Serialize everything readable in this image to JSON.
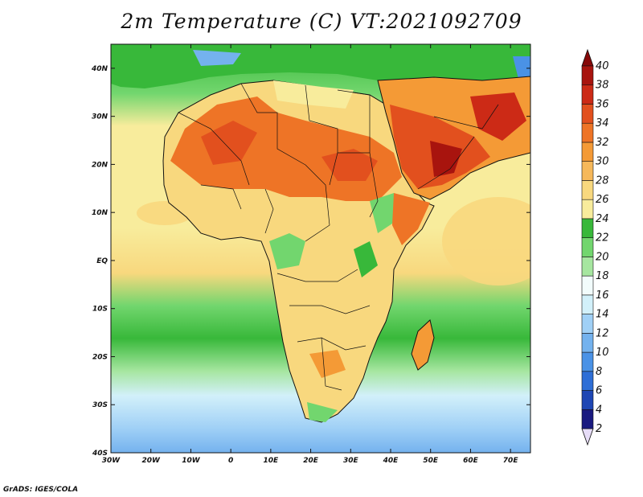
{
  "title": "2m Temperature (C) VT:2021092709",
  "credit": "GrADS: IGES/COLA",
  "map": {
    "lon_range": [
      -30,
      75
    ],
    "lat_range": [
      -40,
      45
    ],
    "lon_ticks": [
      {
        "value": -30,
        "label": "30W"
      },
      {
        "value": -20,
        "label": "20W"
      },
      {
        "value": -10,
        "label": "10W"
      },
      {
        "value": 0,
        "label": "0"
      },
      {
        "value": 10,
        "label": "10E"
      },
      {
        "value": 20,
        "label": "20E"
      },
      {
        "value": 30,
        "label": "30E"
      },
      {
        "value": 40,
        "label": "40E"
      },
      {
        "value": 50,
        "label": "50E"
      },
      {
        "value": 60,
        "label": "60E"
      },
      {
        "value": 70,
        "label": "70E"
      }
    ],
    "lat_ticks": [
      {
        "value": 40,
        "label": "40N"
      },
      {
        "value": 30,
        "label": "30N"
      },
      {
        "value": 20,
        "label": "20N"
      },
      {
        "value": 10,
        "label": "10N"
      },
      {
        "value": 0,
        "label": "EQ"
      },
      {
        "value": -10,
        "label": "10S"
      },
      {
        "value": -20,
        "label": "20S"
      },
      {
        "value": -30,
        "label": "30S"
      },
      {
        "value": -40,
        "label": "40S"
      }
    ]
  },
  "colorbar": {
    "levels": [
      2,
      4,
      6,
      8,
      10,
      12,
      14,
      16,
      18,
      20,
      22,
      24,
      26,
      28,
      30,
      32,
      34,
      36,
      38,
      40
    ],
    "colors": [
      "#e6dcf7",
      "#1a1a80",
      "#1e46b4",
      "#2e6ed6",
      "#4a92e6",
      "#74b2ee",
      "#a0d0f6",
      "#d2f0fa",
      "#f2fcfc",
      "#a6e6a0",
      "#72d66e",
      "#38b83a",
      "#f8ec9c",
      "#f8d87e",
      "#f6b85a",
      "#f49a36",
      "#ee7426",
      "#e2501e",
      "#cc2a16",
      "#a8140e",
      "#860808"
    ]
  }
}
